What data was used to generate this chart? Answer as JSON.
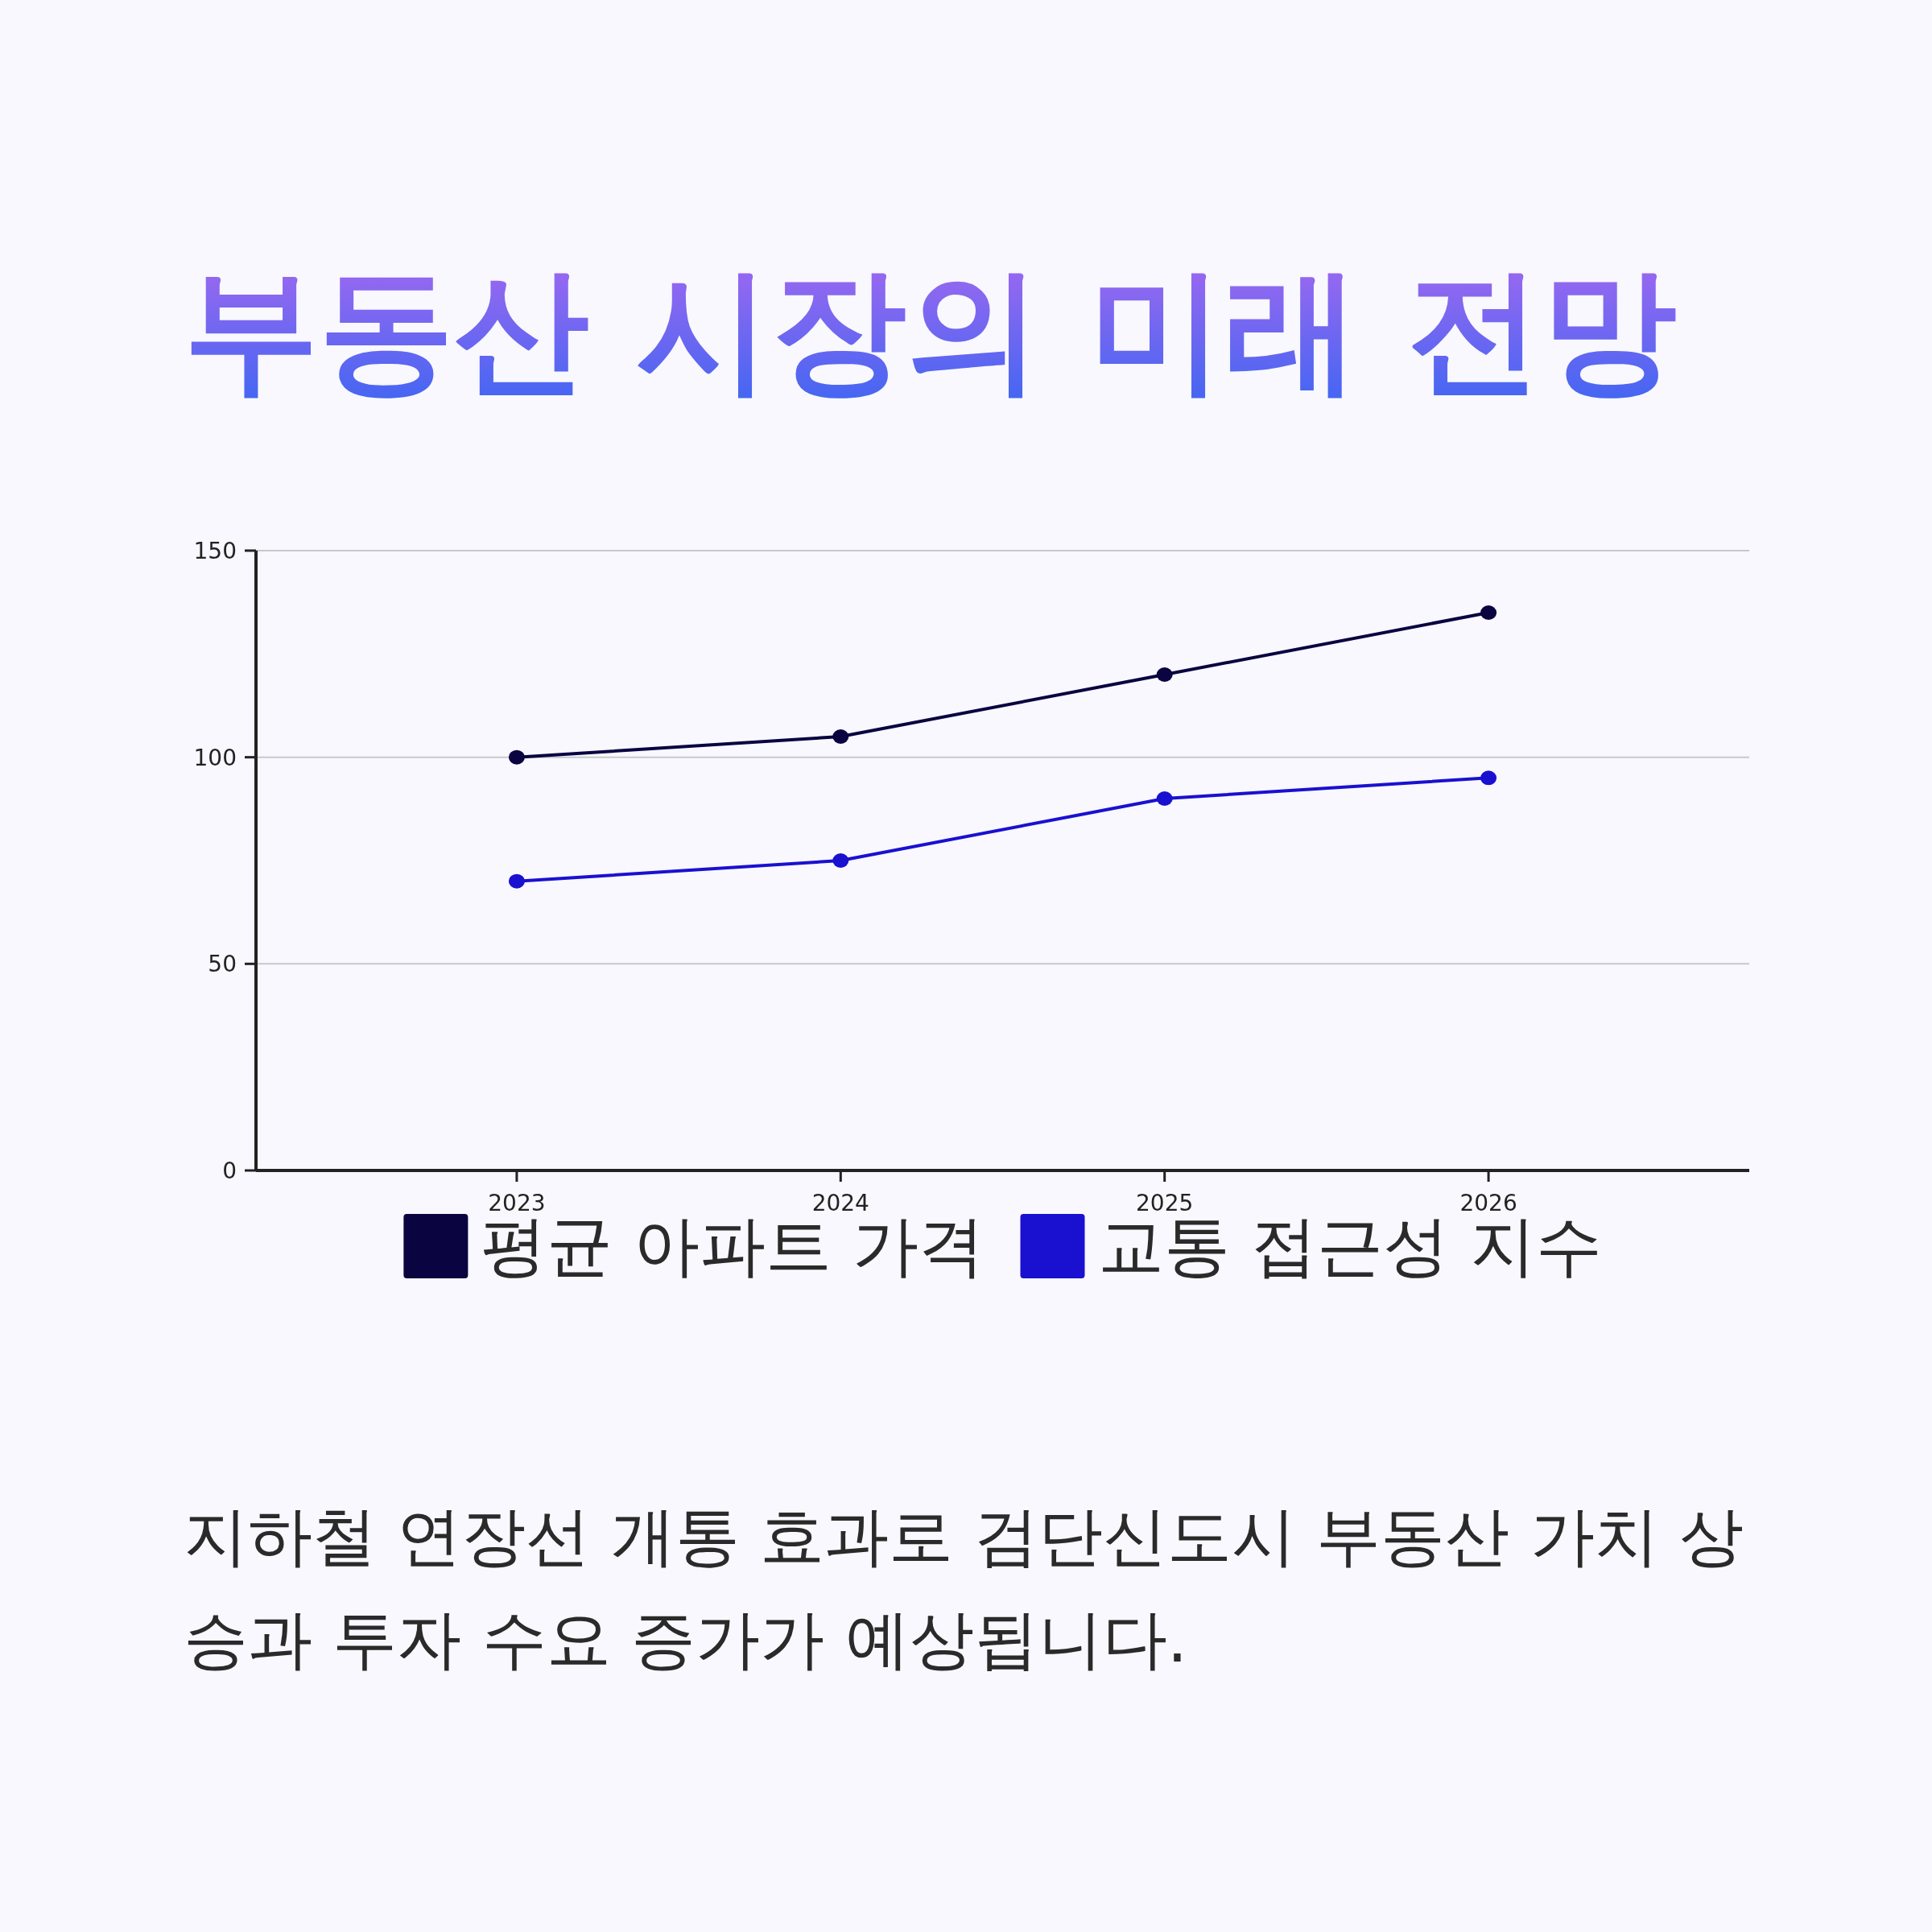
{
  "chart_data": {
    "type": "line",
    "title": "부동산 시장의 미래 전망",
    "categories": [
      "2023",
      "2024",
      "2025",
      "2026"
    ],
    "series": [
      {
        "name": "평균 아파트 가격",
        "color": "#0a0440",
        "values": [
          100,
          105,
          120,
          135
        ]
      },
      {
        "name": "교통 접근성 지수",
        "color": "#1a10d0",
        "values": [
          70,
          75,
          90,
          95
        ]
      }
    ],
    "ylim": [
      0,
      150
    ],
    "yticks": [
      0,
      50,
      100,
      150
    ],
    "grid": "y",
    "legend": "bottom",
    "marker": "circle",
    "line_style": "solid",
    "annotations": [
      "지하철 연장선 개통 효과로 검단신도시 부동산 가치 상승과 투자 수요 증가가 예상됩니다."
    ]
  }
}
